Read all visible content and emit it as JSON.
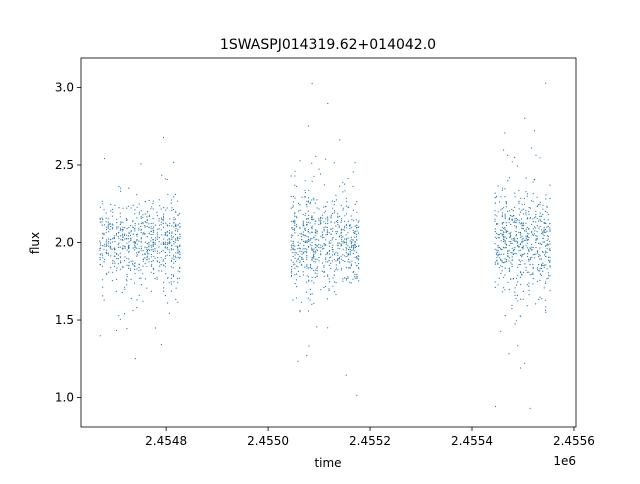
{
  "chart_data": {
    "type": "scatter",
    "title": "1SWASPJ014319.62+014042.0",
    "xlabel": "time",
    "ylabel": "flux",
    "x_offset_label": "1e6",
    "xlim": [
      2454633,
      2455604
    ],
    "ylim": [
      0.81,
      3.19
    ],
    "xticks": [
      2454800,
      2455000,
      2455200,
      2455400,
      2455600
    ],
    "xtick_labels": [
      "2.4548",
      "2.4550",
      "2.4552",
      "2.4554",
      "2.4556"
    ],
    "yticks": [
      1.0,
      1.5,
      2.0,
      2.5,
      3.0
    ],
    "ytick_labels": [
      "1.0",
      "1.5",
      "2.0",
      "2.5",
      "3.0"
    ],
    "grid": false,
    "marker_color": "#1f77b4",
    "clusters": [
      {
        "x_range": [
          2454670,
          2454830
        ],
        "y_center": 2.0,
        "y_spread": 0.13,
        "y_range": [
          0.93,
          3.08
        ],
        "count": 700
      },
      {
        "x_range": [
          2455045,
          2455180
        ],
        "y_center": 2.0,
        "y_spread": 0.15,
        "y_range": [
          0.92,
          3.05
        ],
        "count": 700
      },
      {
        "x_range": [
          2455445,
          2455555
        ],
        "y_center": 2.0,
        "y_spread": 0.17,
        "y_range": [
          0.92,
          3.06
        ],
        "count": 600
      }
    ]
  }
}
